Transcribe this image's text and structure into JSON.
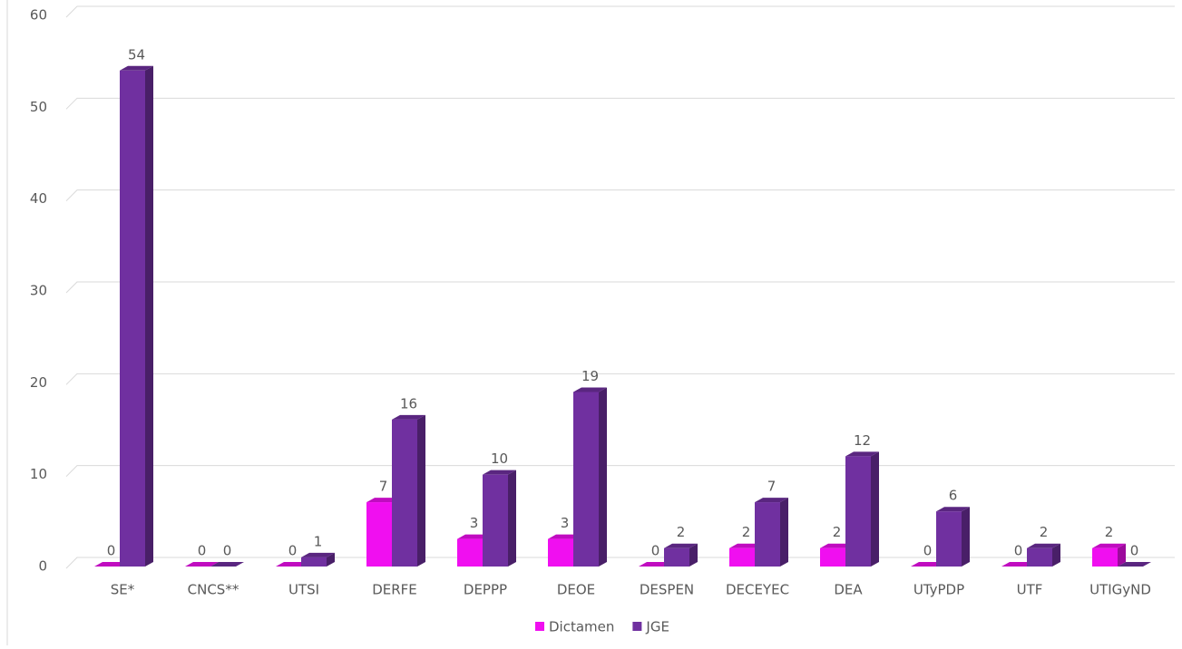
{
  "chart_data": {
    "type": "bar",
    "categories": [
      "SE*",
      "CNCS**",
      "UTSI",
      "DERFE",
      "DEPPP",
      "DEOE",
      "DESPEN",
      "DECEYEC",
      "DEA",
      "UTyPDP",
      "UTF",
      "UTIGyND"
    ],
    "series": [
      {
        "name": "Dictamen",
        "color": "#f00ff0",
        "values": [
          0,
          0,
          0,
          7,
          3,
          3,
          0,
          2,
          2,
          0,
          0,
          2
        ]
      },
      {
        "name": "JGE",
        "color": "#7030a0",
        "values": [
          54,
          0,
          1,
          16,
          10,
          19,
          2,
          7,
          12,
          6,
          2,
          0
        ]
      }
    ],
    "ylim": [
      0,
      60
    ],
    "yticks": [
      0,
      10,
      20,
      30,
      40,
      50,
      60
    ],
    "grid": true,
    "legend": "bottom"
  }
}
